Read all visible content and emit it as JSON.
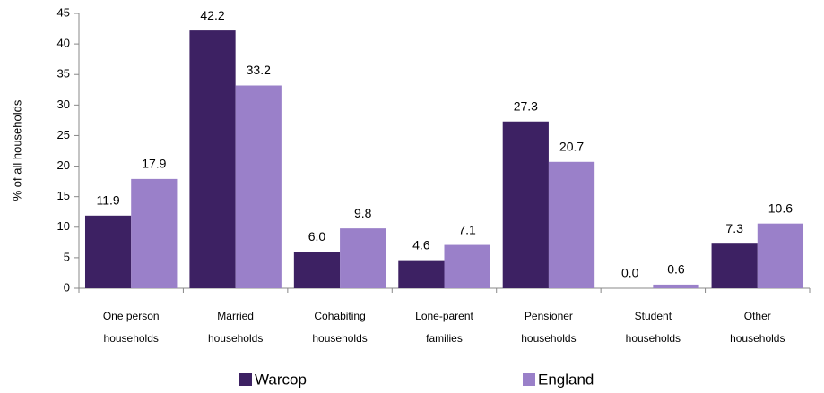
{
  "chart_data": {
    "type": "bar",
    "y_label": "% of all households",
    "categories": [
      [
        "One person",
        "households"
      ],
      [
        "Married",
        "households"
      ],
      [
        "Cohabiting",
        "households"
      ],
      [
        "Lone-parent",
        "families"
      ],
      [
        "Pensioner",
        "households"
      ],
      [
        "Student",
        "households"
      ],
      [
        "Other",
        "households"
      ]
    ],
    "series": [
      {
        "name": "Warcop",
        "color": "#3d2163",
        "values": [
          11.9,
          42.2,
          6.0,
          4.6,
          27.3,
          0.0,
          7.3
        ],
        "value_labels": [
          "11.9",
          "42.2",
          "6.0",
          "4.6",
          "27.3",
          "0.0",
          "7.3"
        ]
      },
      {
        "name": "England",
        "color": "#9a80c9",
        "values": [
          17.9,
          33.2,
          9.8,
          7.1,
          20.7,
          0.6,
          10.6
        ],
        "value_labels": [
          "17.9",
          "33.2",
          "9.8",
          "7.1",
          "20.7",
          "0.6",
          "10.6"
        ]
      }
    ],
    "ylim": [
      0,
      45
    ],
    "yticks": [
      0,
      5,
      10,
      15,
      20,
      25,
      30,
      35,
      40,
      45
    ],
    "grid": false,
    "legend": "bottom"
  }
}
